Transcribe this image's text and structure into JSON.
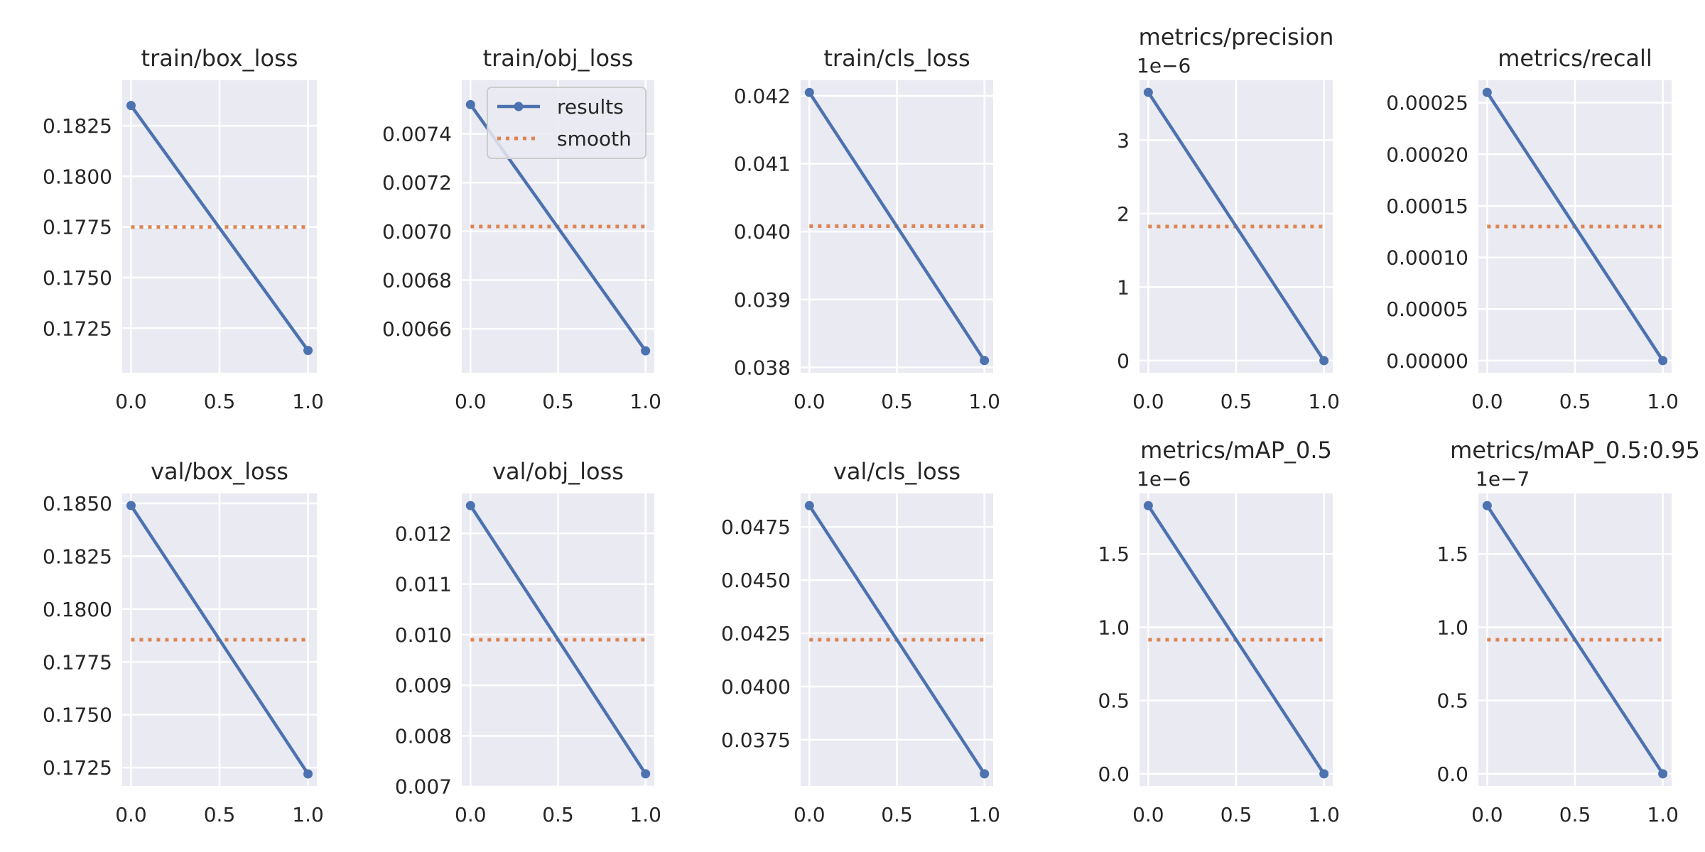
{
  "colors": {
    "axes_bg": "#eaeaf2",
    "grid": "#ffffff",
    "results": "#4c72b0",
    "smooth": "#dd8452",
    "text": "#262626"
  },
  "legend": {
    "results": "results",
    "smooth": "smooth",
    "placement": "upper right of train/obj_loss"
  },
  "chart_data": [
    {
      "type": "line",
      "title": "train/box_loss",
      "offset": "",
      "x": [
        0,
        1
      ],
      "results": [
        0.1835,
        0.1714
      ],
      "smooth": 0.1775,
      "ylim": [
        0.1703,
        0.18475
      ],
      "yticks": [
        0.1725,
        0.175,
        0.1775,
        0.18,
        0.1825
      ],
      "ytick_labels": [
        "0.1725",
        "0.1750",
        "0.1775",
        "0.1800",
        "0.1825"
      ],
      "xlim": [
        -0.05,
        1.05
      ],
      "xticks": [
        0,
        0.5,
        1
      ],
      "xtick_labels": [
        "0.0",
        "0.5",
        "1.0"
      ],
      "grid": true
    },
    {
      "type": "line",
      "title": "train/obj_loss",
      "offset": "",
      "x": [
        0,
        1
      ],
      "results": [
        0.00752,
        0.00651
      ],
      "smooth": 0.00702,
      "ylim": [
        0.00642,
        0.00762
      ],
      "yticks": [
        0.0066,
        0.0068,
        0.007,
        0.0072,
        0.0074
      ],
      "ytick_labels": [
        "0.0066",
        "0.0068",
        "0.0070",
        "0.0072",
        "0.0074"
      ],
      "xlim": [
        -0.05,
        1.05
      ],
      "xticks": [
        0,
        0.5,
        1
      ],
      "xtick_labels": [
        "0.0",
        "0.5",
        "1.0"
      ],
      "grid": true,
      "legend": true
    },
    {
      "type": "line",
      "title": "train/cls_loss",
      "offset": "",
      "x": [
        0,
        1
      ],
      "results": [
        0.04205,
        0.0381
      ],
      "smooth": 0.04008,
      "ylim": [
        0.03792,
        0.04223
      ],
      "yticks": [
        0.038,
        0.039,
        0.04,
        0.041,
        0.042
      ],
      "ytick_labels": [
        "0.038",
        "0.039",
        "0.040",
        "0.041",
        "0.042"
      ],
      "xlim": [
        -0.05,
        1.05
      ],
      "xticks": [
        0,
        0.5,
        1
      ],
      "xtick_labels": [
        "0.0",
        "0.5",
        "1.0"
      ],
      "grid": true
    },
    {
      "type": "line",
      "title": "metrics/precision",
      "offset": "1e−6",
      "x": [
        0,
        1
      ],
      "results": [
        3.65,
        0
      ],
      "smooth": 1.825,
      "ylim": [
        -0.165,
        3.815
      ],
      "yticks": [
        0,
        1,
        2,
        3
      ],
      "ytick_labels": [
        "0",
        "1",
        "2",
        "3"
      ],
      "xlim": [
        -0.05,
        1.05
      ],
      "xticks": [
        0,
        0.5,
        1
      ],
      "xtick_labels": [
        "0.0",
        "0.5",
        "1.0"
      ],
      "grid": true
    },
    {
      "type": "line",
      "title": "metrics/recall",
      "offset": "",
      "x": [
        0,
        1
      ],
      "results": [
        0.00026,
        0
      ],
      "smooth": 0.00013,
      "ylim": [
        -1.18e-05,
        0.0002718
      ],
      "yticks": [
        0,
        5e-05,
        0.0001,
        0.00015,
        0.0002,
        0.00025
      ],
      "ytick_labels": [
        "0.00000",
        "0.00005",
        "0.00010",
        "0.00015",
        "0.00020",
        "0.00025"
      ],
      "xlim": [
        -0.05,
        1.05
      ],
      "xticks": [
        0,
        0.5,
        1
      ],
      "xtick_labels": [
        "0.0",
        "0.5",
        "1.0"
      ],
      "grid": true
    },
    {
      "type": "line",
      "title": "val/box_loss",
      "offset": "",
      "x": [
        0,
        1
      ],
      "results": [
        0.1849,
        0.1722
      ],
      "smooth": 0.17855,
      "ylim": [
        0.17163,
        0.18547
      ],
      "yticks": [
        0.1725,
        0.175,
        0.1775,
        0.18,
        0.1825,
        0.185
      ],
      "ytick_labels": [
        "0.1725",
        "0.1750",
        "0.1775",
        "0.1800",
        "0.1825",
        "0.1850"
      ],
      "xlim": [
        -0.05,
        1.05
      ],
      "xticks": [
        0,
        0.5,
        1
      ],
      "xtick_labels": [
        "0.0",
        "0.5",
        "1.0"
      ],
      "grid": true
    },
    {
      "type": "line",
      "title": "val/obj_loss",
      "offset": "",
      "x": [
        0,
        1
      ],
      "results": [
        0.01255,
        0.00725
      ],
      "smooth": 0.0099,
      "ylim": [
        0.00701,
        0.01279
      ],
      "yticks": [
        0.007,
        0.008,
        0.009,
        0.01,
        0.011,
        0.012
      ],
      "ytick_labels": [
        "0.007",
        "0.008",
        "0.009",
        "0.010",
        "0.011",
        "0.012"
      ],
      "xlim": [
        -0.05,
        1.05
      ],
      "xticks": [
        0,
        0.5,
        1
      ],
      "xtick_labels": [
        "0.0",
        "0.5",
        "1.0"
      ],
      "grid": true
    },
    {
      "type": "line",
      "title": "val/cls_loss",
      "offset": "",
      "x": [
        0,
        1
      ],
      "results": [
        0.0485,
        0.0359
      ],
      "smooth": 0.0422,
      "ylim": [
        0.03533,
        0.04907
      ],
      "yticks": [
        0.0375,
        0.04,
        0.0425,
        0.045,
        0.0475
      ],
      "ytick_labels": [
        "0.0375",
        "0.0400",
        "0.0425",
        "0.0450",
        "0.0475"
      ],
      "xlim": [
        -0.05,
        1.05
      ],
      "xticks": [
        0,
        0.5,
        1
      ],
      "xtick_labels": [
        "0.0",
        "0.5",
        "1.0"
      ],
      "grid": true
    },
    {
      "type": "line",
      "title": "metrics/mAP_0.5",
      "offset": "1e−6",
      "x": [
        0,
        1
      ],
      "results": [
        1.83,
        0
      ],
      "smooth": 0.915,
      "ylim": [
        -0.083,
        1.913
      ],
      "yticks": [
        0,
        0.5,
        1,
        1.5
      ],
      "ytick_labels": [
        "0.0",
        "0.5",
        "1.0",
        "1.5"
      ],
      "xlim": [
        -0.05,
        1.05
      ],
      "xticks": [
        0,
        0.5,
        1
      ],
      "xtick_labels": [
        "0.0",
        "0.5",
        "1.0"
      ],
      "grid": true
    },
    {
      "type": "line",
      "title": "metrics/mAP_0.5:0.95",
      "offset": "1e−7",
      "x": [
        0,
        1
      ],
      "results": [
        1.83,
        0
      ],
      "smooth": 0.915,
      "ylim": [
        -0.083,
        1.913
      ],
      "yticks": [
        0,
        0.5,
        1,
        1.5
      ],
      "ytick_labels": [
        "0.0",
        "0.5",
        "1.0",
        "1.5"
      ],
      "xlim": [
        -0.05,
        1.05
      ],
      "xticks": [
        0,
        0.5,
        1
      ],
      "xtick_labels": [
        "0.0",
        "0.5",
        "1.0"
      ],
      "grid": true
    }
  ]
}
